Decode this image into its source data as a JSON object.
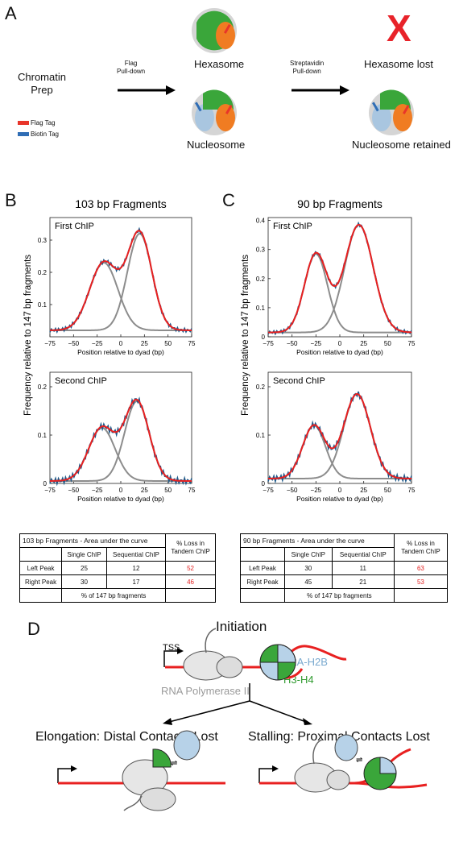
{
  "panels": {
    "a": "A",
    "b": "B",
    "c": "C",
    "d": "D"
  },
  "panel_a": {
    "chromatin_prep": [
      "Chromatin",
      "Prep"
    ],
    "flag_pulldown": [
      "Flag",
      "Pull-down"
    ],
    "strep_pulldown": [
      "Streptavidin",
      "Pull-down"
    ],
    "hexasome": "Hexasome",
    "nucleosome": "Nucleosome",
    "hexasome_lost": "Hexasome lost",
    "nucleosome_retained": "Nucleosome retained",
    "legend_flag": "Flag Tag",
    "legend_biotin": "Biotin Tag",
    "lost_mark": "X",
    "colors": {
      "flag": "#e8352a",
      "biotin": "#2f6db5",
      "h3h4": "#3aa63a",
      "h2a": "#f07c22",
      "h2a_light": "#a9c6e0",
      "x": "#e8232a"
    }
  },
  "ylabel": "Frequency relative to 147 bp fragments",
  "chart_data": [
    {
      "id": "b_first",
      "type": "line",
      "title": "103 bp Fragments",
      "subtitle": "First ChIP",
      "xlabel": "Position relative to dyad (bp)",
      "xlim": [
        -75,
        75
      ],
      "ylim": [
        0,
        0.37
      ],
      "xticks": [
        -75,
        -50,
        -25,
        0,
        25,
        50,
        75
      ],
      "yticks": [
        0.1,
        0.2,
        0.3
      ],
      "base": 0.02,
      "peaks": [
        {
          "mu": -18,
          "amp": 0.21,
          "sigma": 15
        },
        {
          "mu": 20,
          "amp": 0.3,
          "sigma": 13
        }
      ],
      "total_peak": 0.36
    },
    {
      "id": "b_second",
      "type": "line",
      "subtitle": "Second ChIP",
      "xlabel": "Position relative to dyad (bp)",
      "xlim": [
        -75,
        75
      ],
      "ylim": [
        0,
        0.23
      ],
      "xticks": [
        -75,
        -50,
        -25,
        0,
        25,
        50,
        75
      ],
      "yticks": [
        0,
        0.1,
        0.2
      ],
      "base": 0.005,
      "peaks": [
        {
          "mu": -20,
          "amp": 0.11,
          "sigma": 14
        },
        {
          "mu": 17,
          "amp": 0.165,
          "sigma": 13
        }
      ],
      "total_peak": 0.19
    },
    {
      "id": "c_first",
      "type": "line",
      "title": "90 bp Fragments",
      "subtitle": "First ChIP",
      "xlabel": "Position relative to dyad (bp)",
      "xlim": [
        -75,
        75
      ],
      "ylim": [
        0,
        0.41
      ],
      "xticks": [
        -75,
        -50,
        -25,
        0,
        25,
        50,
        75
      ],
      "yticks": [
        0,
        0.1,
        0.2,
        0.3,
        0.4
      ],
      "base": 0.015,
      "peaks": [
        {
          "mu": -25,
          "amp": 0.27,
          "sigma": 12
        },
        {
          "mu": 20,
          "amp": 0.37,
          "sigma": 15
        }
      ],
      "total_peak": 0.39
    },
    {
      "id": "c_second",
      "type": "line",
      "subtitle": "Second ChIP",
      "xlabel": "Position relative to dyad (bp)",
      "xlim": [
        -75,
        75
      ],
      "ylim": [
        0,
        0.23
      ],
      "xticks": [
        -75,
        -50,
        -25,
        0,
        25,
        50,
        75
      ],
      "yticks": [
        0,
        0.1,
        0.2
      ],
      "base": 0.01,
      "peaks": [
        {
          "mu": -27,
          "amp": 0.11,
          "sigma": 12
        },
        {
          "mu": 18,
          "amp": 0.175,
          "sigma": 14
        }
      ],
      "total_peak": 0.19
    }
  ],
  "series_colors": {
    "data": "#1f5a8a",
    "fit": "#e82020",
    "component": "#8c8c8c"
  },
  "table_b": {
    "title": "103 bp Fragments - Area under the curve",
    "loss_header": [
      "% Loss in",
      "Tandem ChIP"
    ],
    "cols": [
      "Single ChIP",
      "Sequential ChIP"
    ],
    "rows": [
      {
        "label": "Left Peak",
        "single": "25",
        "seq": "12",
        "loss": "52"
      },
      {
        "label": "Right Peak",
        "single": "30",
        "seq": "17",
        "loss": "46"
      }
    ],
    "footer": "% of 147 bp fragments"
  },
  "table_c": {
    "title": "90 bp Fragments - Area under the curve",
    "loss_header": [
      "% Loss in",
      "Tandem ChIP"
    ],
    "cols": [
      "Single ChIP",
      "Sequential ChIP"
    ],
    "rows": [
      {
        "label": "Left Peak",
        "single": "30",
        "seq": "11",
        "loss": "63"
      },
      {
        "label": "Right Peak",
        "single": "45",
        "seq": "21",
        "loss": "53"
      }
    ],
    "footer": "% of 147 bp fragments"
  },
  "panel_d": {
    "initiation": "Initiation",
    "tss": "TSS",
    "h2a_h2b": "H2A-H2B",
    "h3_h4": "H3-H4",
    "pol": "RNA Polymerase II",
    "elongation": "Elongation: Distal Contacts Lost",
    "stalling": "Stalling: Proximal Contacts Lost"
  }
}
